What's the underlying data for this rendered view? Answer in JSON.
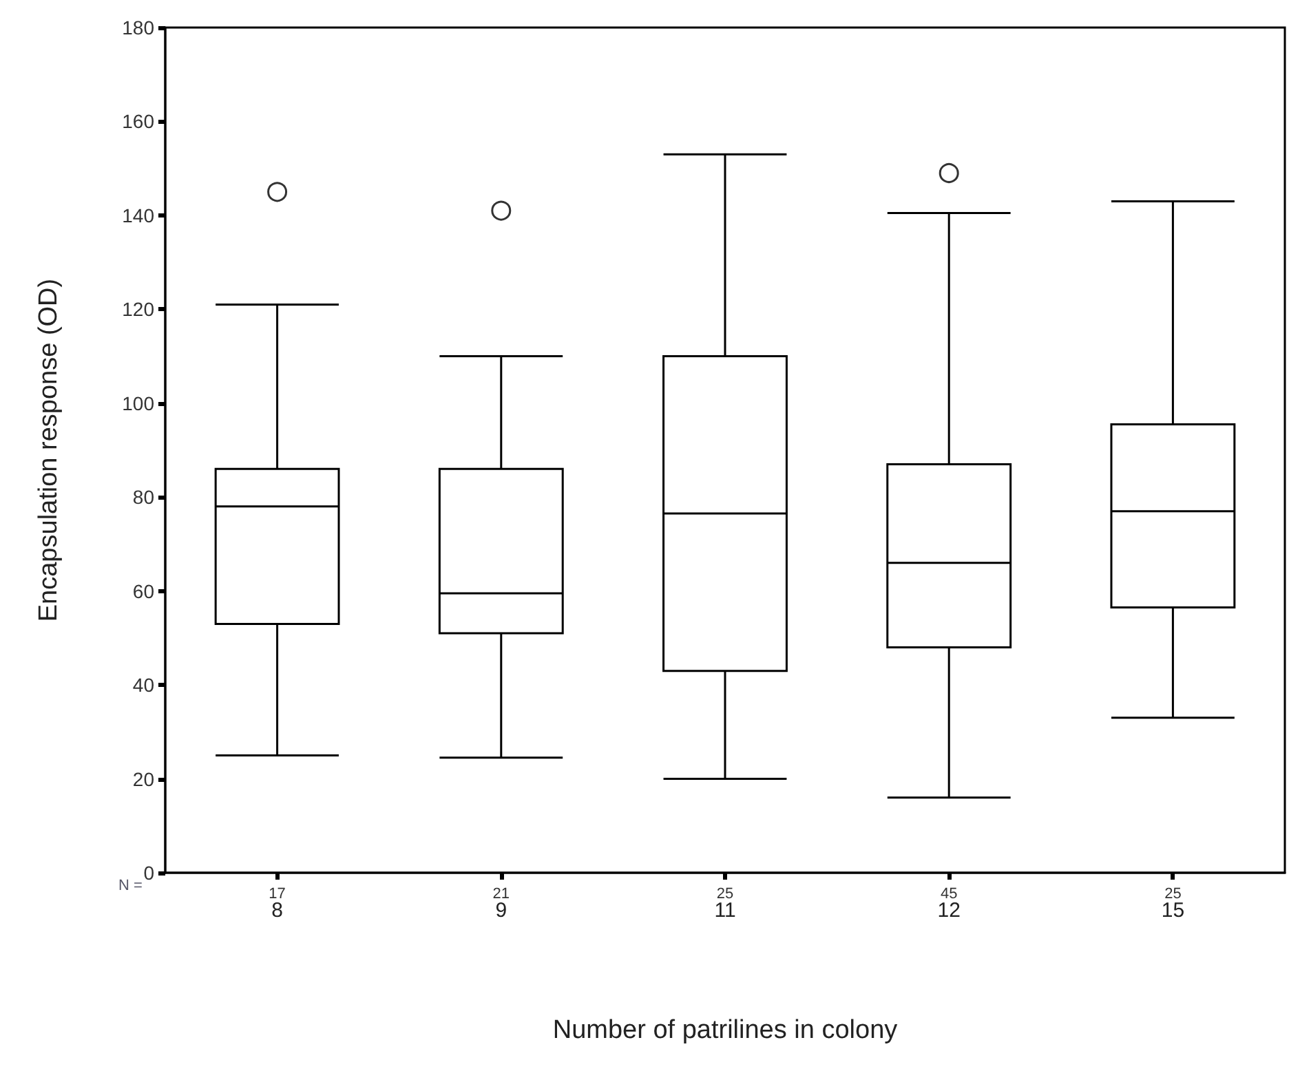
{
  "chart_data": {
    "type": "box",
    "xlabel": "Number of patrilines in colony",
    "ylabel": "Encapsulation response (OD)",
    "categories": [
      "8",
      "9",
      "11",
      "12",
      "15"
    ],
    "boxes": [
      {
        "low": 25,
        "q1": 53,
        "median": 78,
        "q3": 86,
        "high": 121,
        "outliers": [
          145
        ]
      },
      {
        "low": 24.5,
        "q1": 51,
        "median": 59.5,
        "q3": 86,
        "high": 110,
        "outliers": [
          141
        ]
      },
      {
        "low": 20,
        "q1": 43,
        "median": 76.5,
        "q3": 110,
        "high": 153
      },
      {
        "low": 16,
        "q1": 48,
        "median": 66,
        "q3": 87,
        "high": 140.5,
        "outliers": [
          149
        ]
      },
      {
        "low": 33,
        "q1": 56.5,
        "median": 77,
        "q3": 95.5,
        "high": 143
      }
    ],
    "ylim": [
      0,
      180
    ],
    "yticks": [
      0,
      20,
      40,
      60,
      80,
      100,
      120,
      140,
      160,
      180
    ],
    "annotations": [
      "N =",
      "17",
      "21",
      "25",
      "45",
      "25"
    ],
    "grid": false,
    "marker": "circle"
  }
}
